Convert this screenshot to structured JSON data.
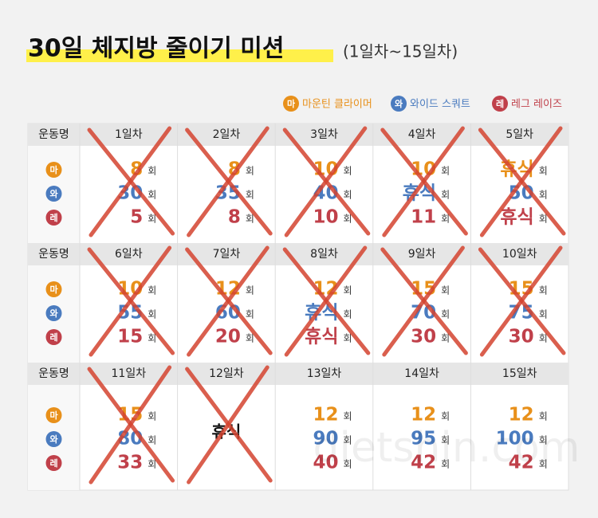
{
  "header": {
    "title": "30일 체지방 줄이기 미션",
    "subtitle": "(1일차~15일차)"
  },
  "legend": [
    {
      "icon": "마",
      "name": "마운틴 클라이머"
    },
    {
      "icon": "와",
      "name": "와이드 스쿼트"
    },
    {
      "icon": "레",
      "name": "레그 레이즈"
    }
  ],
  "table": {
    "row_header": "운동명",
    "unit": "회",
    "days": [
      {
        "label": "1일차",
        "items": [
          8,
          30,
          5
        ],
        "done": true
      },
      {
        "label": "2일차",
        "items": [
          8,
          35,
          8
        ],
        "done": true
      },
      {
        "label": "3일차",
        "items": [
          10,
          40,
          10
        ],
        "done": true
      },
      {
        "label": "4일차",
        "items": [
          10,
          "휴식",
          11
        ],
        "done": true
      },
      {
        "label": "5일차",
        "items": [
          "휴식",
          50,
          "휴식"
        ],
        "done": true
      },
      {
        "label": "6일차",
        "items": [
          10,
          55,
          15
        ],
        "done": true
      },
      {
        "label": "7일차",
        "items": [
          12,
          60,
          20
        ],
        "done": true
      },
      {
        "label": "8일차",
        "items": [
          12,
          "휴식",
          "휴식"
        ],
        "done": true
      },
      {
        "label": "9일차",
        "items": [
          15,
          70,
          30
        ],
        "done": true
      },
      {
        "label": "10일차",
        "items": [
          15,
          75,
          30
        ],
        "done": true
      },
      {
        "label": "11일차",
        "items": [
          15,
          80,
          33
        ],
        "done": true
      },
      {
        "label": "12일차",
        "rest": "휴식",
        "done": true
      },
      {
        "label": "13일차",
        "items": [
          12,
          90,
          40
        ],
        "done": false
      },
      {
        "label": "14일차",
        "items": [
          12,
          95,
          42
        ],
        "done": false
      },
      {
        "label": "15일차",
        "items": [
          12,
          100,
          42
        ],
        "done": false
      }
    ]
  },
  "watermark": "dietshin.com"
}
